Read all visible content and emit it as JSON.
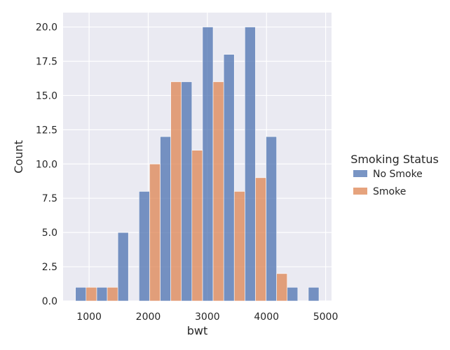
{
  "chart_data": {
    "type": "bar",
    "subtype": "histogram-dodged",
    "xlabel": "bwt",
    "ylabel": "Count",
    "xlim": [
      560,
      5100
    ],
    "ylim": [
      0,
      21.05
    ],
    "xticks": [
      1000,
      2000,
      3000,
      4000,
      5000
    ],
    "yticks": [
      0.0,
      2.5,
      5.0,
      7.5,
      10.0,
      12.5,
      15.0,
      17.5,
      20.0
    ],
    "ytick_labels": [
      "0.0",
      "2.5",
      "5.0",
      "7.5",
      "10.0",
      "12.5",
      "15.0",
      "17.5",
      "20.0"
    ],
    "grid": true,
    "bin_edges": [
      770,
      1128,
      1486,
      1844,
      2202,
      2560,
      2918,
      3276,
      3634,
      3992,
      4350,
      4708,
      5066
    ],
    "legend": {
      "title": "Smoking Status",
      "placement": "right"
    },
    "series": [
      {
        "name": "No Smoke",
        "color": "#4c72b0",
        "values": [
          1,
          1,
          5,
          8,
          12,
          16,
          20,
          18,
          20,
          12,
          1,
          1
        ]
      },
      {
        "name": "Smoke",
        "color": "#dd8452",
        "values": [
          1,
          1,
          0,
          10,
          16,
          11,
          16,
          8,
          9,
          2,
          0,
          0
        ]
      }
    ]
  }
}
